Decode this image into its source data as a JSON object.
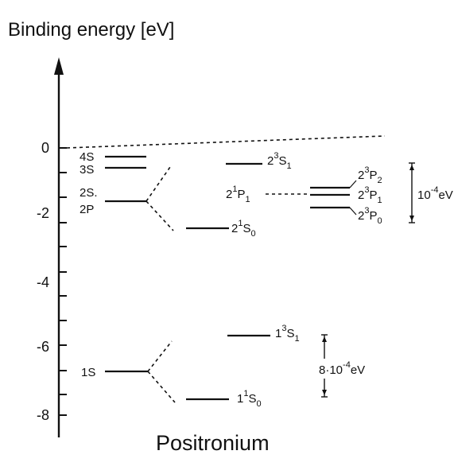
{
  "title": "Binding energy [eV]",
  "subtitle": "Positronium",
  "y_ticks": [
    "0",
    "-2",
    "-4",
    "-6",
    "-8"
  ],
  "hydrogenic_levels": {
    "n4": "4S",
    "n3": "3S",
    "n2s": "2S.",
    "n2p": "2P",
    "n1": "1S"
  },
  "fine_structure_n2": {
    "triplet_s": {
      "main": "2",
      "sup": "3",
      "letter": "S",
      "sub": "1"
    },
    "singlet_p": {
      "main": "2",
      "sup": "1",
      "letter": "P",
      "sub": "1"
    },
    "singlet_s": {
      "main": "2",
      "sup": "1",
      "letter": "S",
      "sub": "0"
    },
    "triplet_p2": {
      "main": "2",
      "sup": "3",
      "letter": "P",
      "sub": "2"
    },
    "triplet_p1": {
      "main": "2",
      "sup": "3",
      "letter": "P",
      "sub": "1"
    },
    "triplet_p0": {
      "main": "2",
      "sup": "3",
      "letter": "P",
      "sub": "0"
    },
    "scale_label": {
      "base": "10",
      "exp": "-4",
      "unit": "eV"
    }
  },
  "fine_structure_n1": {
    "triplet_s": {
      "main": "1",
      "sup": "3",
      "letter": "S",
      "sub": "1"
    },
    "singlet_s": {
      "main": "1",
      "sup": "1",
      "letter": "S",
      "sub": "0"
    },
    "scale_label": {
      "prefix": "8·10",
      "exp": "-4",
      "unit": "eV"
    }
  }
}
